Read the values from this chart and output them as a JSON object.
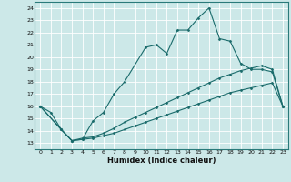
{
  "xlabel": "Humidex (Indice chaleur)",
  "bg_color": "#cce8e8",
  "grid_color": "#ffffff",
  "line_color": "#1a6b6b",
  "xlim": [
    -0.5,
    23.5
  ],
  "ylim": [
    12.5,
    24.5
  ],
  "xticks": [
    0,
    1,
    2,
    3,
    4,
    5,
    6,
    7,
    8,
    9,
    10,
    11,
    12,
    13,
    14,
    15,
    16,
    17,
    18,
    19,
    20,
    21,
    22,
    23
  ],
  "yticks": [
    13,
    14,
    15,
    16,
    17,
    18,
    19,
    20,
    21,
    22,
    23,
    24
  ],
  "line1_x": [
    0,
    1,
    2,
    3,
    4,
    5,
    6,
    7,
    8,
    10,
    11,
    12,
    13,
    14,
    15,
    16,
    17,
    18,
    19,
    20,
    21,
    22,
    23
  ],
  "line1_y": [
    16.0,
    15.5,
    14.1,
    13.2,
    13.3,
    14.8,
    15.5,
    17.0,
    18.0,
    20.8,
    21.0,
    20.3,
    22.2,
    22.2,
    23.2,
    24.0,
    21.5,
    21.3,
    19.5,
    19.0,
    19.0,
    18.8,
    16.0
  ],
  "line2_x": [
    0,
    2,
    3,
    4,
    5,
    6,
    7,
    8,
    9,
    10,
    11,
    12,
    13,
    14,
    15,
    16,
    17,
    18,
    19,
    20,
    21,
    22,
    23
  ],
  "line2_y": [
    16.0,
    14.1,
    13.2,
    13.4,
    13.5,
    13.8,
    14.2,
    14.7,
    15.1,
    15.5,
    15.9,
    16.3,
    16.7,
    17.1,
    17.5,
    17.9,
    18.3,
    18.6,
    18.9,
    19.1,
    19.3,
    19.0,
    16.0
  ],
  "line3_x": [
    0,
    2,
    3,
    4,
    5,
    6,
    7,
    8,
    9,
    10,
    11,
    12,
    13,
    14,
    15,
    16,
    17,
    18,
    19,
    20,
    21,
    22,
    23
  ],
  "line3_y": [
    16.0,
    14.1,
    13.2,
    13.3,
    13.4,
    13.6,
    13.8,
    14.1,
    14.4,
    14.7,
    15.0,
    15.3,
    15.6,
    15.9,
    16.2,
    16.5,
    16.8,
    17.1,
    17.3,
    17.5,
    17.7,
    17.9,
    16.0
  ]
}
